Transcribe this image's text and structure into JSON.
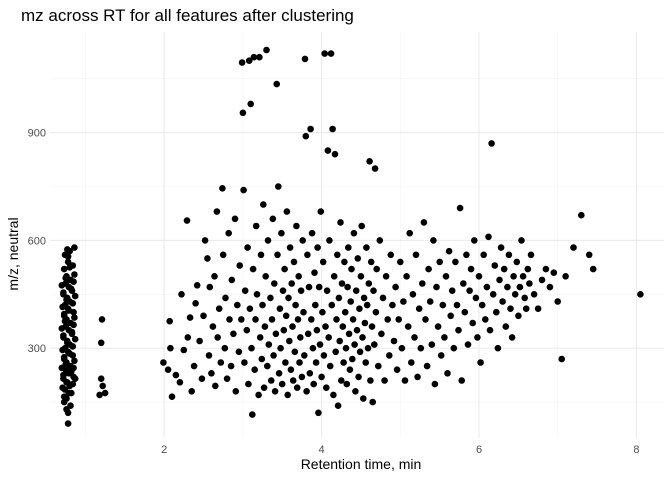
{
  "chart_data": {
    "type": "scatter",
    "title": "mz across RT for all features after clustering",
    "xlabel": "Retention time, min",
    "ylabel": "m/z, neutral",
    "xlim": [
      0.55,
      8.35
    ],
    "ylim": [
      50,
      1180
    ],
    "x_ticks": [
      2,
      4,
      6,
      8
    ],
    "y_ticks": [
      300,
      600,
      900
    ],
    "x_minor_ticks": [
      1,
      3,
      5,
      7
    ],
    "y_minor_ticks": [
      150,
      450,
      750,
      1050
    ],
    "grid": true,
    "legend": "none",
    "point_color": "#000000",
    "points": [
      [
        0.78,
        90
      ],
      [
        0.73,
        150
      ],
      [
        0.76,
        160
      ],
      [
        0.82,
        175
      ],
      [
        0.74,
        185
      ],
      [
        0.8,
        195
      ],
      [
        0.77,
        205
      ],
      [
        0.72,
        215
      ],
      [
        0.85,
        220
      ],
      [
        0.79,
        230
      ],
      [
        0.75,
        240
      ],
      [
        0.81,
        250
      ],
      [
        0.76,
        260
      ],
      [
        0.73,
        270
      ],
      [
        0.84,
        280
      ],
      [
        0.78,
        290
      ],
      [
        0.74,
        300
      ],
      [
        0.8,
        310
      ],
      [
        0.77,
        320
      ],
      [
        0.72,
        330
      ],
      [
        0.83,
        340
      ],
      [
        0.79,
        350
      ],
      [
        0.75,
        360
      ],
      [
        0.81,
        370
      ],
      [
        0.76,
        380
      ],
      [
        0.73,
        390
      ],
      [
        0.85,
        400
      ],
      [
        0.78,
        410
      ],
      [
        0.74,
        420
      ],
      [
        0.8,
        430
      ],
      [
        0.77,
        440
      ],
      [
        0.72,
        450
      ],
      [
        0.83,
        460
      ],
      [
        0.79,
        470
      ],
      [
        0.75,
        480
      ],
      [
        0.81,
        490
      ],
      [
        0.76,
        500
      ],
      [
        0.73,
        520
      ],
      [
        0.84,
        530
      ],
      [
        0.78,
        540
      ],
      [
        0.74,
        560
      ],
      [
        0.8,
        570
      ],
      [
        0.77,
        575
      ],
      [
        0.86,
        580
      ],
      [
        0.71,
        190
      ],
      [
        0.87,
        215
      ],
      [
        0.7,
        245
      ],
      [
        0.86,
        265
      ],
      [
        0.71,
        295
      ],
      [
        0.87,
        325
      ],
      [
        0.7,
        355
      ],
      [
        0.86,
        385
      ],
      [
        0.71,
        415
      ],
      [
        0.87,
        445
      ],
      [
        0.7,
        475
      ],
      [
        0.86,
        505
      ],
      [
        0.79,
        175
      ],
      [
        0.76,
        205
      ],
      [
        0.82,
        235
      ],
      [
        0.75,
        255
      ],
      [
        0.8,
        285
      ],
      [
        0.77,
        315
      ],
      [
        0.83,
        345
      ],
      [
        0.74,
        375
      ],
      [
        0.79,
        405
      ],
      [
        0.76,
        435
      ],
      [
        0.82,
        465
      ],
      [
        0.75,
        495
      ],
      [
        0.8,
        525
      ],
      [
        0.78,
        555
      ],
      [
        0.73,
        165
      ],
      [
        0.84,
        200
      ],
      [
        0.72,
        225
      ],
      [
        0.85,
        245
      ],
      [
        0.73,
        275
      ],
      [
        0.84,
        305
      ],
      [
        0.72,
        335
      ],
      [
        0.85,
        365
      ],
      [
        0.73,
        395
      ],
      [
        0.84,
        425
      ],
      [
        0.72,
        455
      ],
      [
        0.85,
        485
      ],
      [
        0.81,
        140
      ],
      [
        0.76,
        130
      ],
      [
        0.78,
        120
      ],
      [
        1.18,
        170
      ],
      [
        1.25,
        175
      ],
      [
        1.2,
        215
      ],
      [
        1.22,
        195
      ],
      [
        1.2,
        315
      ],
      [
        1.21,
        380
      ],
      [
        1.99,
        260
      ],
      [
        2.05,
        240
      ],
      [
        2.07,
        375
      ],
      [
        2.08,
        300
      ],
      [
        2.1,
        165
      ],
      [
        2.15,
        225
      ],
      [
        2.2,
        205
      ],
      [
        2.22,
        450
      ],
      [
        2.25,
        295
      ],
      [
        2.29,
        655
      ],
      [
        2.3,
        330
      ],
      [
        2.33,
        385
      ],
      [
        2.35,
        180
      ],
      [
        2.38,
        250
      ],
      [
        2.4,
        425
      ],
      [
        2.42,
        475
      ],
      [
        2.45,
        320
      ],
      [
        2.48,
        215
      ],
      [
        2.5,
        390
      ],
      [
        2.52,
        600
      ],
      [
        2.55,
        550
      ],
      [
        2.57,
        280
      ],
      [
        2.58,
        470
      ],
      [
        2.6,
        230
      ],
      [
        2.62,
        360
      ],
      [
        2.64,
        500
      ],
      [
        2.65,
        195
      ],
      [
        2.67,
        680
      ],
      [
        2.68,
        330
      ],
      [
        2.7,
        410
      ],
      [
        2.72,
        260
      ],
      [
        2.74,
        745
      ],
      [
        2.75,
        560
      ],
      [
        2.77,
        300
      ],
      [
        2.78,
        440
      ],
      [
        2.8,
        215
      ],
      [
        2.82,
        620
      ],
      [
        2.83,
        380
      ],
      [
        2.85,
        250
      ],
      [
        2.86,
        490
      ],
      [
        2.88,
        340
      ],
      [
        2.9,
        660
      ],
      [
        2.91,
        180
      ],
      [
        2.93,
        420
      ],
      [
        2.95,
        290
      ],
      [
        2.96,
        530
      ],
      [
        2.98,
        380
      ],
      [
        2.99,
        1095
      ],
      [
        3.0,
        955
      ],
      [
        3.01,
        740
      ],
      [
        3.02,
        260
      ],
      [
        3.03,
        460
      ],
      [
        3.05,
        350
      ],
      [
        3.06,
        580
      ],
      [
        3.07,
        200
      ],
      [
        3.08,
        1100
      ],
      [
        3.09,
        410
      ],
      [
        3.1,
        980
      ],
      [
        3.11,
        300
      ],
      [
        3.12,
        115
      ],
      [
        3.13,
        520
      ],
      [
        3.14,
        1110
      ],
      [
        3.15,
        240
      ],
      [
        3.16,
        380
      ],
      [
        3.17,
        640
      ],
      [
        3.18,
        450
      ],
      [
        3.2,
        170
      ],
      [
        3.21,
        1110
      ],
      [
        3.22,
        330
      ],
      [
        3.23,
        560
      ],
      [
        3.24,
        270
      ],
      [
        3.25,
        420
      ],
      [
        3.26,
        700
      ],
      [
        3.27,
        190
      ],
      [
        3.28,
        360
      ],
      [
        3.29,
        500
      ],
      [
        3.3,
        1130
      ],
      [
        3.31,
        250
      ],
      [
        3.32,
        600
      ],
      [
        3.33,
        310
      ],
      [
        3.35,
        440
      ],
      [
        3.36,
        210
      ],
      [
        3.37,
        380
      ],
      [
        3.38,
        660
      ],
      [
        3.39,
        280
      ],
      [
        3.4,
        480
      ],
      [
        3.41,
        180
      ],
      [
        3.42,
        340
      ],
      [
        3.43,
        1035
      ],
      [
        3.44,
        560
      ],
      [
        3.45,
        750
      ],
      [
        3.46,
        230
      ],
      [
        3.47,
        410
      ],
      [
        3.48,
        300
      ],
      [
        3.49,
        620
      ],
      [
        3.5,
        200
      ],
      [
        3.51,
        460
      ],
      [
        3.52,
        350
      ],
      [
        3.53,
        520
      ],
      [
        3.54,
        260
      ],
      [
        3.55,
        390
      ],
      [
        3.56,
        680
      ],
      [
        3.57,
        170
      ],
      [
        3.58,
        440
      ],
      [
        3.59,
        320
      ],
      [
        3.6,
        580
      ],
      [
        3.61,
        240
      ],
      [
        3.62,
        480
      ],
      [
        3.63,
        360
      ],
      [
        3.64,
        210
      ],
      [
        3.65,
        540
      ],
      [
        3.66,
        290
      ],
      [
        3.67,
        420
      ],
      [
        3.68,
        640
      ],
      [
        3.69,
        190
      ],
      [
        3.7,
        380
      ],
      [
        3.71,
        500
      ],
      [
        3.72,
        260
      ],
      [
        3.73,
        330
      ],
      [
        3.74,
        460
      ],
      [
        3.75,
        220
      ],
      [
        3.76,
        600
      ],
      [
        3.77,
        400
      ],
      [
        3.78,
        280
      ],
      [
        3.79,
        1105
      ],
      [
        3.8,
        890
      ],
      [
        3.81,
        180
      ],
      [
        3.82,
        560
      ],
      [
        3.83,
        340
      ],
      [
        3.84,
        470
      ],
      [
        3.85,
        230
      ],
      [
        3.86,
        910
      ],
      [
        3.87,
        380
      ],
      [
        3.88,
        620
      ],
      [
        3.89,
        300
      ],
      [
        3.9,
        200
      ],
      [
        3.91,
        510
      ],
      [
        3.92,
        420
      ],
      [
        3.93,
        260
      ],
      [
        3.94,
        350
      ],
      [
        3.95,
        580
      ],
      [
        3.96,
        120
      ],
      [
        3.97,
        470
      ],
      [
        3.98,
        310
      ],
      [
        3.99,
        680
      ],
      [
        4.0,
        220
      ],
      [
        4.01,
        400
      ],
      [
        4.02,
        540
      ],
      [
        4.03,
        280
      ],
      [
        4.04,
        1120
      ],
      [
        4.05,
        360
      ],
      [
        4.06,
        190
      ],
      [
        4.07,
        460
      ],
      [
        4.08,
        850
      ],
      [
        4.09,
        330
      ],
      [
        4.1,
        600
      ],
      [
        4.11,
        250
      ],
      [
        4.12,
        1120
      ],
      [
        4.13,
        420
      ],
      [
        4.14,
        910
      ],
      [
        4.15,
        170
      ],
      [
        4.16,
        500
      ],
      [
        4.17,
        840
      ],
      [
        4.18,
        290
      ],
      [
        4.19,
        380
      ],
      [
        4.2,
        560
      ],
      [
        4.21,
        140
      ],
      [
        4.22,
        440
      ],
      [
        4.23,
        320
      ],
      [
        4.24,
        650
      ],
      [
        4.25,
        210
      ],
      [
        4.26,
        480
      ],
      [
        4.27,
        360
      ],
      [
        4.28,
        260
      ],
      [
        4.29,
        540
      ],
      [
        4.3,
        400
      ],
      [
        4.31,
        300
      ],
      [
        4.32,
        200
      ],
      [
        4.33,
        470
      ],
      [
        4.34,
        580
      ],
      [
        4.35,
        340
      ],
      [
        4.36,
        240
      ],
      [
        4.37,
        430
      ],
      [
        4.38,
        520
      ],
      [
        4.39,
        270
      ],
      [
        4.4,
        380
      ],
      [
        4.41,
        620
      ],
      [
        4.42,
        310
      ],
      [
        4.43,
        180
      ],
      [
        4.44,
        460
      ],
      [
        4.45,
        350
      ],
      [
        4.46,
        550
      ],
      [
        4.47,
        220
      ],
      [
        4.48,
        410
      ],
      [
        4.49,
        290
      ],
      [
        4.5,
        500
      ],
      [
        4.51,
        640
      ],
      [
        4.52,
        330
      ],
      [
        4.53,
        160
      ],
      [
        4.54,
        440
      ],
      [
        4.55,
        370
      ],
      [
        4.56,
        260
      ],
      [
        4.57,
        580
      ],
      [
        4.58,
        420
      ],
      [
        4.59,
        300
      ],
      [
        4.6,
        480
      ],
      [
        4.61,
        820
      ],
      [
        4.62,
        210
      ],
      [
        4.63,
        540
      ],
      [
        4.64,
        360
      ],
      [
        4.65,
        150
      ],
      [
        4.66,
        460
      ],
      [
        4.67,
        310
      ],
      [
        4.68,
        800
      ],
      [
        4.69,
        400
      ],
      [
        4.7,
        520
      ],
      [
        4.72,
        250
      ],
      [
        4.74,
        600
      ],
      [
        4.76,
        340
      ],
      [
        4.78,
        440
      ],
      [
        4.8,
        210
      ],
      [
        4.82,
        500
      ],
      [
        4.84,
        380
      ],
      [
        4.86,
        280
      ],
      [
        4.88,
        560
      ],
      [
        4.9,
        420
      ],
      [
        4.92,
        320
      ],
      [
        4.94,
        470
      ],
      [
        4.96,
        240
      ],
      [
        4.98,
        380
      ],
      [
        5.0,
        540
      ],
      [
        5.02,
        300
      ],
      [
        5.04,
        430
      ],
      [
        5.06,
        210
      ],
      [
        5.08,
        500
      ],
      [
        5.1,
        360
      ],
      [
        5.12,
        620
      ],
      [
        5.14,
        260
      ],
      [
        5.16,
        450
      ],
      [
        5.18,
        330
      ],
      [
        5.2,
        560
      ],
      [
        5.22,
        220
      ],
      [
        5.24,
        410
      ],
      [
        5.26,
        300
      ],
      [
        5.28,
        480
      ],
      [
        5.3,
        650
      ],
      [
        5.32,
        380
      ],
      [
        5.34,
        250
      ],
      [
        5.36,
        520
      ],
      [
        5.38,
        430
      ],
      [
        5.4,
        310
      ],
      [
        5.42,
        600
      ],
      [
        5.44,
        200
      ],
      [
        5.46,
        470
      ],
      [
        5.48,
        360
      ],
      [
        5.5,
        540
      ],
      [
        5.52,
        280
      ],
      [
        5.54,
        420
      ],
      [
        5.56,
        330
      ],
      [
        5.58,
        500
      ],
      [
        5.6,
        230
      ],
      [
        5.62,
        570
      ],
      [
        5.64,
        390
      ],
      [
        5.66,
        460
      ],
      [
        5.68,
        300
      ],
      [
        5.7,
        540
      ],
      [
        5.72,
        420
      ],
      [
        5.74,
        350
      ],
      [
        5.76,
        690
      ],
      [
        5.78,
        210
      ],
      [
        5.8,
        480
      ],
      [
        5.82,
        400
      ],
      [
        5.84,
        560
      ],
      [
        5.86,
        310
      ],
      [
        5.88,
        460
      ],
      [
        5.9,
        520
      ],
      [
        5.92,
        370
      ],
      [
        5.94,
        600
      ],
      [
        5.96,
        440
      ],
      [
        5.98,
        330
      ],
      [
        6.0,
        500
      ],
      [
        6.02,
        260
      ],
      [
        6.04,
        420
      ],
      [
        6.06,
        560
      ],
      [
        6.08,
        380
      ],
      [
        6.1,
        470
      ],
      [
        6.12,
        610
      ],
      [
        6.14,
        350
      ],
      [
        6.16,
        870
      ],
      [
        6.18,
        450
      ],
      [
        6.2,
        530
      ],
      [
        6.22,
        400
      ],
      [
        6.24,
        300
      ],
      [
        6.26,
        490
      ],
      [
        6.28,
        580
      ],
      [
        6.3,
        430
      ],
      [
        6.32,
        520
      ],
      [
        6.34,
        360
      ],
      [
        6.36,
        470
      ],
      [
        6.38,
        560
      ],
      [
        6.4,
        410
      ],
      [
        6.42,
        330
      ],
      [
        6.44,
        500
      ],
      [
        6.46,
        450
      ],
      [
        6.48,
        540
      ],
      [
        6.5,
        390
      ],
      [
        6.52,
        470
      ],
      [
        6.54,
        600
      ],
      [
        6.56,
        500
      ],
      [
        6.58,
        440
      ],
      [
        6.6,
        410
      ],
      [
        6.62,
        520
      ],
      [
        6.64,
        480
      ],
      [
        6.66,
        560
      ],
      [
        6.7,
        450
      ],
      [
        6.75,
        410
      ],
      [
        6.8,
        490
      ],
      [
        6.85,
        520
      ],
      [
        6.9,
        470
      ],
      [
        6.95,
        510
      ],
      [
        7.0,
        430
      ],
      [
        7.05,
        270
      ],
      [
        7.1,
        500
      ],
      [
        7.2,
        580
      ],
      [
        7.3,
        670
      ],
      [
        7.4,
        560
      ],
      [
        7.45,
        520
      ],
      [
        8.05,
        450
      ]
    ]
  }
}
